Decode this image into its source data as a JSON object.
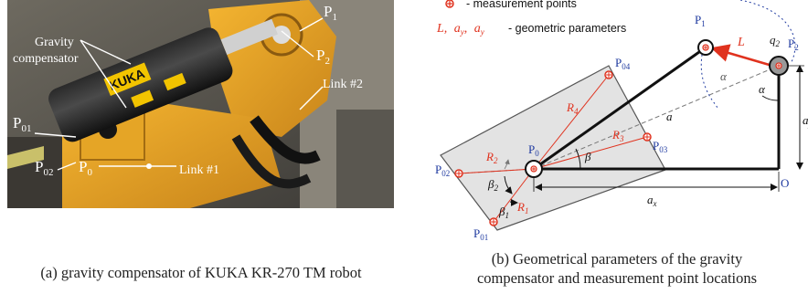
{
  "photo": {
    "labels": {
      "p1": "P",
      "p1_sub": "1",
      "p2": "P",
      "p2_sub": "2",
      "p01": "P",
      "p01_sub": "01",
      "p02": "P",
      "p02_sub": "02",
      "p0": "P",
      "p0_sub": "0",
      "gravity_line1": "Gravity",
      "gravity_line2": "compensator",
      "link2": "Link #2",
      "link1": "Link #1",
      "brand": "KUKA"
    }
  },
  "diagram": {
    "legend": {
      "point_text": "- measurement points",
      "params_symbols": "L, aᵧ, aᵧ",
      "params_L": "L,",
      "params_ay": "a",
      "params_ay_sub": "y",
      "params_ax": "a",
      "params_ax_sub": "y",
      "params_text": "- geometric parameters"
    },
    "labels": {
      "P1": "P",
      "P1_sub": "1",
      "P2": "P",
      "P2_sub": "2",
      "P04": "P",
      "P04_sub": "04",
      "P03": "P",
      "P03_sub": "03",
      "P02": "P",
      "P02_sub": "02",
      "P01": "P",
      "P01_sub": "01",
      "P0": "P",
      "P0_sub": "0",
      "O": "O",
      "L": "L",
      "q2": "q",
      "q2_sub": "2",
      "alpha1": "α",
      "alpha2": "α",
      "a": "a",
      "beta": "β",
      "beta1": "β",
      "beta1_sub": "1",
      "beta2": "β",
      "beta2_sub": "2",
      "R1": "R",
      "R1_sub": "1",
      "R2": "R",
      "R2_sub": "2",
      "R3": "R",
      "R3_sub": "3",
      "R4": "R",
      "R4_sub": "4",
      "ay": "a",
      "ay_sub": "y",
      "ax": "a",
      "ax_sub": "x"
    }
  },
  "captions": {
    "a": "(a) gravity compensator of KUKA KR-270 TM robot",
    "b_line1": "(b) Geometrical parameters of the gravity",
    "b_line2": "compensator and measurement point locations"
  },
  "colors": {
    "accent_red": "#e0321e",
    "label_blue": "#1f3aa0",
    "robot_orange": "#e8a21a"
  }
}
